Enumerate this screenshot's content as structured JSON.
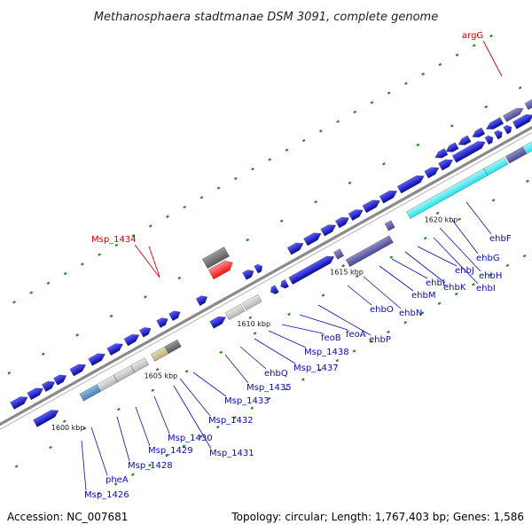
{
  "title": "Methanosphaera stadtmanae DSM 3091, complete genome",
  "footer": {
    "accession": "Accession: NC_007681",
    "summary": "Topology: circular; Length: 1,767,403 bp; Genes: 1,586"
  },
  "scale_labels": [
    "1600 kbp",
    "1605 kbp",
    "1610 kbp",
    "1615 kbp",
    "1620 kbp"
  ],
  "gene_labels": {
    "Msp_1426": "Msp_1426",
    "pheA": "pheA",
    "Msp_1428": "Msp_1428",
    "Msp_1429": "Msp_1429",
    "Msp_1430": "Msp_1430",
    "Msp_1431": "Msp_1431",
    "Msp_1432": "Msp_1432",
    "Msp_1433": "Msp_1433",
    "Msp_1435": "Msp_1435",
    "ehbQ": "ehbQ",
    "Msp_1437": "Msp_1437",
    "Msp_1438": "Msp_1438",
    "feoB": "feoB",
    "feoA": "feoA",
    "ehbP": "ehbP",
    "ehbO": "ehbO",
    "ehbN": "ehbN",
    "ehbM": "ehbM",
    "ehbL": "ehbL",
    "ehbK": "ehbK",
    "ehbJ": "ehbJ",
    "ehbI": "ehbI",
    "ehbH": "ehbH",
    "ehbG": "ehbG",
    "ehbF": "ehbF",
    "Msp_1434": "Msp_1434",
    "argG": "argG"
  },
  "colors": {
    "cds": "#1414ee",
    "cds_dark": "#0a0a9c",
    "cds_light": "#5c5cff",
    "complex": "#4a4794",
    "complex_light": "#8e8cc9",
    "cyan": "#22e0ea",
    "cyan_light": "#a6f7fa",
    "steel": "#4a7fb4",
    "steel_light": "#8db7df",
    "grey": "#b5b5b5",
    "grey_light": "#e8e8e8",
    "darkgrey": "#5b5b5b",
    "darkgrey_light": "#9b9b9b",
    "olive": "#b7b07c",
    "olive_light": "#e0dcb3",
    "red": "#f51010",
    "red_light": "#ff8a8a",
    "backbone": "#8a8a8a",
    "tick": "#1f8a1f",
    "label_blue": "#0a0ab4",
    "label_red": "#d40000"
  }
}
